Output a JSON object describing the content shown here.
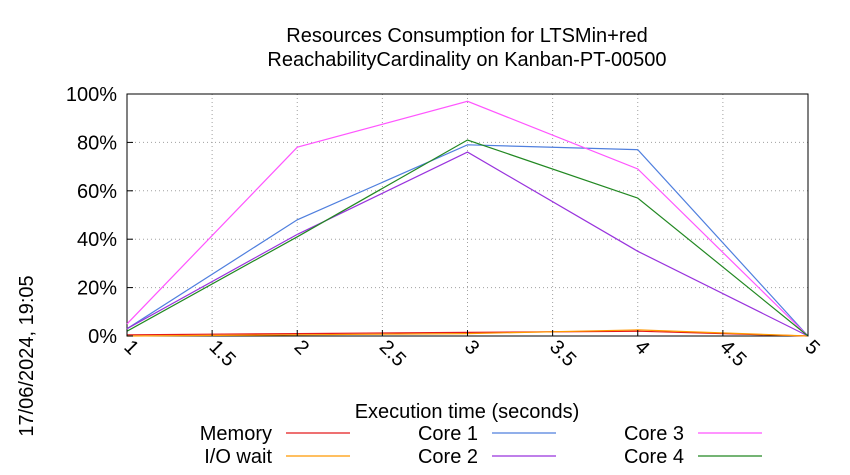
{
  "chart_data": {
    "type": "line",
    "title_line1": "Resources Consumption for LTSMin+red",
    "title_line2": "ReachabilityCardinality on Kanban-PT-00500",
    "xlabel": "Execution time (seconds)",
    "ylabel": "",
    "side_label": "17/06/2024, 19:05",
    "xlim": [
      1,
      5
    ],
    "ylim": [
      0,
      100
    ],
    "x_ticks": [
      "1",
      "1.5",
      "2",
      "2.5",
      "3",
      "3.5",
      "4",
      "4.5",
      "5"
    ],
    "x_tick_values": [
      1,
      1.5,
      2,
      2.5,
      3,
      3.5,
      4,
      4.5,
      5
    ],
    "y_ticks": [
      "0%",
      "20%",
      "40%",
      "60%",
      "80%",
      "100%"
    ],
    "y_tick_values": [
      0,
      20,
      40,
      60,
      80,
      100
    ],
    "grid": true,
    "legend_position": "bottom",
    "x": [
      1,
      2,
      3,
      4,
      5
    ],
    "series": [
      {
        "name": "Memory",
        "color": "#e41a1c",
        "values": [
          0.5,
          1.0,
          1.5,
          2.0,
          0
        ]
      },
      {
        "name": "I/O wait",
        "color": "#ff9900",
        "values": [
          0,
          0.5,
          1.0,
          2.5,
          0
        ]
      },
      {
        "name": "Core 1",
        "color": "#4f7fde",
        "values": [
          3,
          48,
          79,
          77,
          0
        ]
      },
      {
        "name": "Core 2",
        "color": "#9933dd",
        "values": [
          3,
          42,
          76,
          35,
          0
        ]
      },
      {
        "name": "Core 3",
        "color": "#ff55ff",
        "values": [
          5,
          78,
          97,
          69,
          0
        ]
      },
      {
        "name": "Core 4",
        "color": "#228822",
        "values": [
          2,
          41,
          81,
          57,
          0
        ]
      }
    ]
  }
}
